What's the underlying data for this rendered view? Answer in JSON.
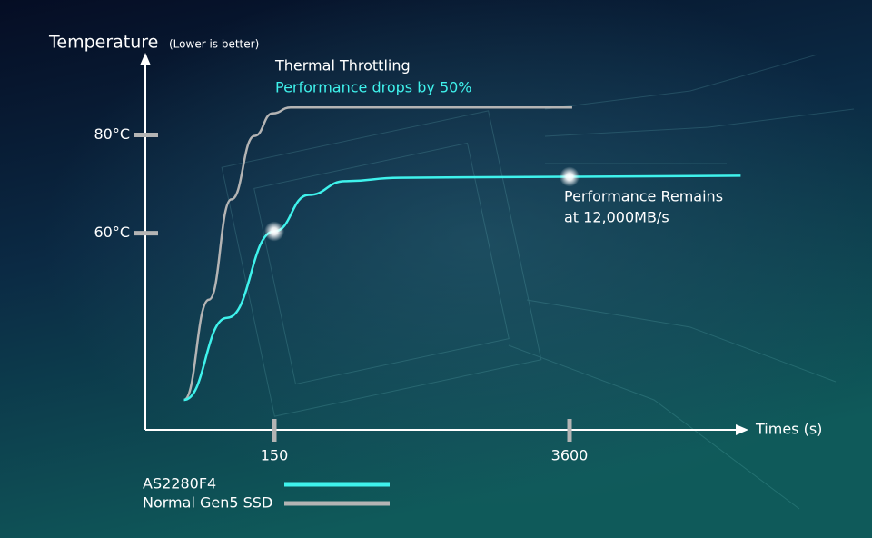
{
  "chart_data": {
    "type": "line",
    "y_label": "Temperature",
    "y_label_note": "(Lower is better)",
    "x_label": "Times (s)",
    "annotations": [
      {
        "text": "Thermal Throttling",
        "color": "#ffffff"
      },
      {
        "text": "Performance drops by 50%",
        "color": "#3ff2ec"
      },
      {
        "text": "Performance Remains",
        "color": "#ffffff"
      },
      {
        "text": "at 12,000MB/s",
        "color": "#ffffff"
      }
    ],
    "xlim": [
      0,
      5700
    ],
    "xticks": [
      150,
      3600
    ],
    "ylim": [
      20,
      96
    ],
    "yticks": [
      {
        "value": 60,
        "label": "60°C"
      },
      {
        "value": 80,
        "label": "80°C"
      }
    ],
    "series": [
      {
        "name": "AS2280F4",
        "color": "#3ff2ec",
        "x": [
          45,
          95,
          150,
          553,
          978,
          1615,
          3600,
          5650
        ],
        "values": [
          26.1,
          42.8,
          60.4,
          67.8,
          70.6,
          71.3,
          71.5,
          71.7
        ]
      },
      {
        "name": "Normal Gen5 SSD",
        "color": "#b4b4b4",
        "x": [
          45,
          74,
          100,
          127,
          148,
          341,
          3632
        ],
        "values": [
          26.1,
          46.5,
          66.9,
          79.8,
          84.4,
          85.6,
          85.6
        ]
      }
    ]
  }
}
